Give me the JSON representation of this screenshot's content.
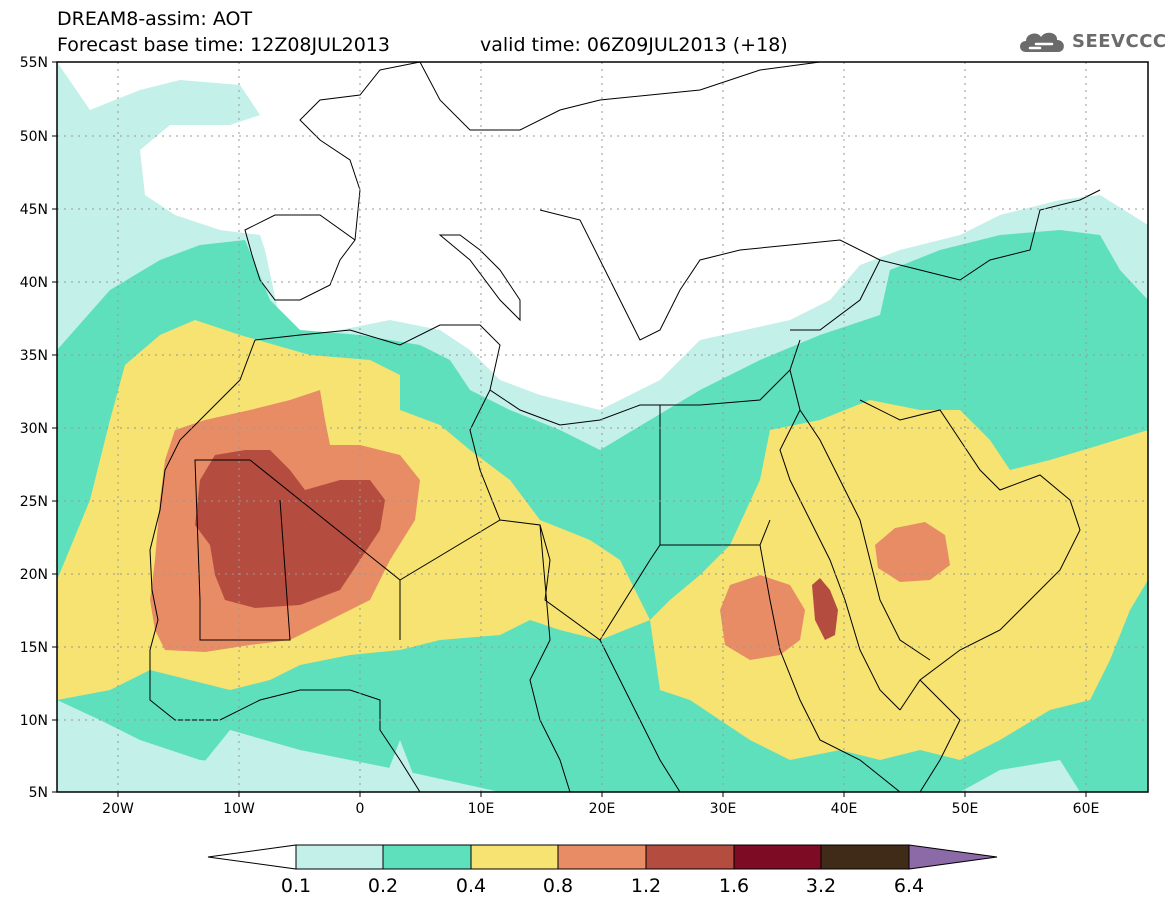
{
  "header": {
    "title": "DREAM8-assim: AOT",
    "base_time": "Forecast base time: 12Z08JUL2013",
    "valid_time": "valid time: 06Z09JUL2013 (+18)"
  },
  "logo": {
    "text": "SEEVCCC",
    "icon": "cloud-icon"
  },
  "map": {
    "lon_range": [
      -25,
      65
    ],
    "lat_range": [
      5,
      55
    ],
    "lat_ticks": [
      "55N",
      "50N",
      "45N",
      "40N",
      "35N",
      "30N",
      "25N",
      "20N",
      "15N",
      "10N",
      "5N"
    ],
    "lon_ticks": [
      "20W",
      "10W",
      "0",
      "10E",
      "20E",
      "30E",
      "40E",
      "50E",
      "60E"
    ],
    "gridlines": "dotted"
  },
  "colorbar": {
    "labels": [
      "0.1",
      "0.2",
      "0.4",
      "0.8",
      "1.2",
      "1.6",
      "3.2",
      "6.4"
    ],
    "colors": [
      "#ffffff",
      "#c3f0e8",
      "#5fe0bd",
      "#f6e371",
      "#e88c66",
      "#b44d40",
      "#7d0b24",
      "#3f2b17",
      "#8c6aa8"
    ]
  }
}
